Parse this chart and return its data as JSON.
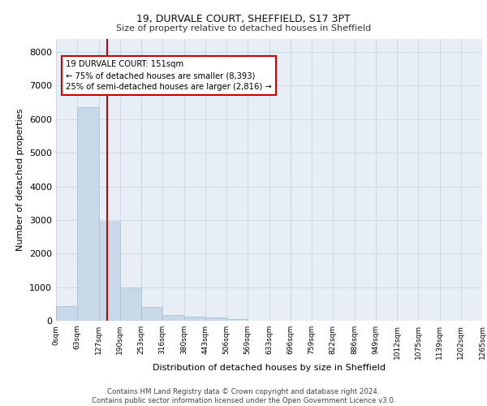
{
  "title1": "19, DURVALE COURT, SHEFFIELD, S17 3PT",
  "title2": "Size of property relative to detached houses in Sheffield",
  "xlabel": "Distribution of detached houses by size in Sheffield",
  "ylabel": "Number of detached properties",
  "bar_color": "#c8d8e8",
  "bar_edgecolor": "#a8bece",
  "gridcolor": "#ccd8e4",
  "bg_color": "#e8eef5",
  "vline_x": 151,
  "vline_color": "#cc0000",
  "annotation_text": "19 DURVALE COURT: 151sqm\n← 75% of detached houses are smaller (8,393)\n25% of semi-detached houses are larger (2,816) →",
  "annotation_box_color": "#cc0000",
  "footnote": "Contains HM Land Registry data © Crown copyright and database right 2024.\nContains public sector information licensed under the Open Government Licence v3.0.",
  "bin_edges": [
    0,
    63,
    127,
    190,
    253,
    316,
    380,
    443,
    506,
    569,
    633,
    696,
    759,
    822,
    886,
    949,
    1012,
    1075,
    1139,
    1202,
    1265
  ],
  "bin_counts": [
    430,
    6350,
    2950,
    980,
    420,
    175,
    130,
    85,
    50,
    10,
    5,
    3,
    2,
    2,
    1,
    1,
    1,
    1,
    1,
    1
  ],
  "ylim": [
    0,
    8400
  ],
  "yticks": [
    0,
    1000,
    2000,
    3000,
    4000,
    5000,
    6000,
    7000,
    8000
  ],
  "tick_labels": [
    "0sqm",
    "63sqm",
    "127sqm",
    "190sqm",
    "253sqm",
    "316sqm",
    "380sqm",
    "443sqm",
    "506sqm",
    "569sqm",
    "633sqm",
    "696sqm",
    "759sqm",
    "822sqm",
    "886sqm",
    "949sqm",
    "1012sqm",
    "1075sqm",
    "1139sqm",
    "1202sqm",
    "1265sqm"
  ]
}
